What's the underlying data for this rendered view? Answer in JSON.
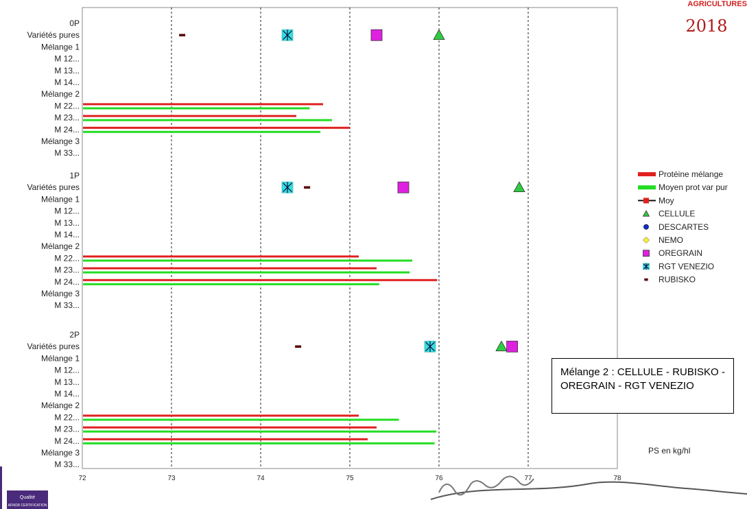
{
  "header": {
    "year": "2018",
    "brand_fragment": "AGRICULTURES"
  },
  "footer": {
    "logo_text_1": "Qualité",
    "logo_text_2": "AFNOR CERTIFICATION"
  },
  "note": "Mélange 2 : CELLULE - RUBISKO - OREGRAIN - RGT VENEZIO",
  "unit_label": "PS en kg/hl",
  "colors": {
    "protein_bar": "#e02020",
    "mean_bar": "#22dd22",
    "triangle": "#2ecc40",
    "circle": "#1030c0",
    "diamond": "#ffee33",
    "square": "#e020e0",
    "star": "#33dddd",
    "dash": "#5a0e0e"
  },
  "chart_data": {
    "type": "bar",
    "orientation": "horizontal",
    "xlim": [
      72,
      78
    ],
    "x_ticks": [
      "72",
      "73",
      "74",
      "75",
      "76",
      "77",
      "78"
    ],
    "grid": {
      "vertical": true,
      "style": "dashed"
    },
    "legend_placement": "right",
    "legend": [
      {
        "label": "Protéine mélange",
        "kind": "bar",
        "color_key": "protein_bar"
      },
      {
        "label": "Moyen prot var pur",
        "kind": "bar",
        "color_key": "mean_bar"
      },
      {
        "label": "Moy",
        "kind": "line-marker",
        "color_key": "protein_bar"
      },
      {
        "label": "CELLULE",
        "kind": "triangle",
        "color_key": "triangle"
      },
      {
        "label": "DESCARTES",
        "kind": "circle",
        "color_key": "circle"
      },
      {
        "label": "NEMO",
        "kind": "diamond",
        "color_key": "diamond"
      },
      {
        "label": "OREGRAIN",
        "kind": "square",
        "color_key": "square"
      },
      {
        "label": "RGT VENEZIO",
        "kind": "star",
        "color_key": "star"
      },
      {
        "label": "RUBISKO",
        "kind": "dash",
        "color_key": "dash"
      }
    ],
    "groups": [
      {
        "rows": [
          "0P",
          "Variétés pures",
          "Mélange 1",
          "M 12...",
          "M 13...",
          "M 14...",
          "Mélange 2",
          "M 22...",
          "M 23...",
          "M 24...",
          "Mélange 3",
          "M 33..."
        ],
        "varietes_pures": {
          "RUBISKO": 73.12,
          "RGT VENEZIO": 74.3,
          "OREGRAIN": 75.3,
          "CELLULE": 76.0
        },
        "bars": [
          {
            "row": "M 22...",
            "protein": 74.7,
            "mean": 74.55
          },
          {
            "row": "M 23...",
            "protein": 74.4,
            "mean": 74.8
          },
          {
            "row": "M 24...",
            "protein": 75.0,
            "mean": 74.67
          }
        ]
      },
      {
        "rows": [
          "1P",
          "Variétés pures",
          "Mélange 1",
          "M 12...",
          "M 13...",
          "M 14...",
          "Mélange 2",
          "M 22...",
          "M 23...",
          "M 24...",
          "Mélange 3",
          "M 33..."
        ],
        "varietes_pures": {
          "RGT VENEZIO": 74.3,
          "RUBISKO": 74.52,
          "OREGRAIN": 75.6,
          "CELLULE": 76.9
        },
        "bars": [
          {
            "row": "M 22...",
            "protein": 75.1,
            "mean": 75.7
          },
          {
            "row": "M 23...",
            "protein": 75.3,
            "mean": 75.67
          },
          {
            "row": "M 24...",
            "protein": 75.98,
            "mean": 75.33
          }
        ]
      },
      {
        "rows": [
          "2P",
          "Variétés pures",
          "Mélange 1",
          "M 12...",
          "M 13...",
          "M 14...",
          "Mélange 2",
          "M 22...",
          "M 23...",
          "M 24...",
          "Mélange 3",
          "M 33..."
        ],
        "varietes_pures": {
          "RUBISKO": 74.42,
          "RGT VENEZIO": 75.9,
          "CELLULE": 76.7,
          "OREGRAIN": 76.82
        },
        "bars": [
          {
            "row": "M 22...",
            "protein": 75.1,
            "mean": 75.55
          },
          {
            "row": "M 23...",
            "protein": 75.3,
            "mean": 75.97
          },
          {
            "row": "M 24...",
            "protein": 75.2,
            "mean": 75.95
          }
        ]
      }
    ]
  }
}
